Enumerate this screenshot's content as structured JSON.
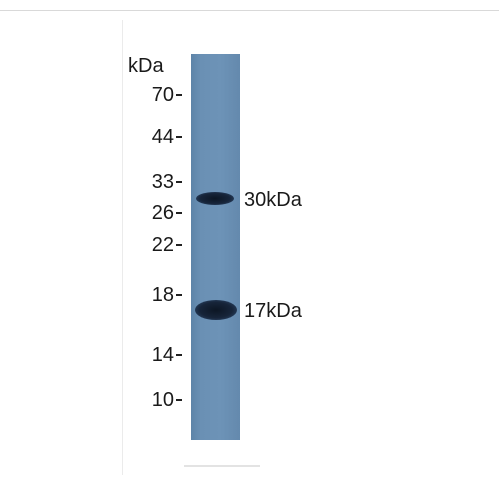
{
  "unit_label": "kDa",
  "ladder": [
    {
      "label": "70"
    },
    {
      "label": "44"
    },
    {
      "label": "33"
    },
    {
      "label": "26"
    },
    {
      "label": "22"
    },
    {
      "label": "18"
    },
    {
      "label": "14"
    },
    {
      "label": "10"
    }
  ],
  "bands": [
    {
      "label": "30kDa"
    },
    {
      "label": "17kDa"
    }
  ],
  "colors": {
    "lane": "#6a90b4",
    "band": "#0c1624",
    "text": "#1a1a1a"
  }
}
